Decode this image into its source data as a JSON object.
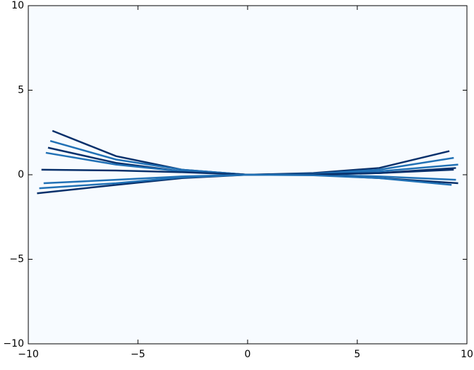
{
  "chart_data": {
    "type": "line",
    "background": "#f7fbff",
    "xlim": [
      -10,
      10
    ],
    "ylim": [
      -10,
      10
    ],
    "xticks": [
      {
        "value": -10,
        "label": "−10"
      },
      {
        "value": -5,
        "label": "−5"
      },
      0,
      5,
      10
    ],
    "yticks": [
      {
        "value": -10,
        "label": "−10"
      },
      {
        "value": -5,
        "label": "−5"
      },
      0,
      5,
      10
    ],
    "series": [
      {
        "color": "#08306b",
        "x": [
          -8.9,
          -6,
          -3,
          0,
          3,
          6,
          9.2
        ],
        "values": [
          2.6,
          1.1,
          0.3,
          0,
          0.1,
          0.4,
          1.4
        ]
      },
      {
        "color": "#2171b5",
        "x": [
          -9,
          -6,
          -3,
          0,
          3,
          6,
          9.4
        ],
        "values": [
          2.0,
          0.9,
          0.3,
          0,
          0.05,
          0.3,
          1.0
        ]
      },
      {
        "color": "#08306b",
        "x": [
          -9.1,
          -6,
          -3,
          0,
          3,
          6,
          9.5
        ],
        "values": [
          1.6,
          0.7,
          0.2,
          0,
          0,
          0.1,
          0.4
        ]
      },
      {
        "color": "#2171b5",
        "x": [
          -9.2,
          -6,
          -3,
          0,
          3,
          6,
          9.5
        ],
        "values": [
          1.3,
          0.6,
          0.2,
          0,
          0,
          -0.1,
          -0.3
        ]
      },
      {
        "color": "#08306b",
        "x": [
          -9.4,
          -6,
          -3,
          0,
          3,
          6,
          9.6
        ],
        "values": [
          0.3,
          0.25,
          0.15,
          0,
          0,
          -0.2,
          -0.5
        ]
      },
      {
        "color": "#2171b5",
        "x": [
          -9.3,
          -6,
          -3,
          0,
          3,
          6,
          9.6
        ],
        "values": [
          -0.5,
          -0.3,
          -0.1,
          0,
          0.05,
          0.2,
          0.6
        ]
      },
      {
        "color": "#08306b",
        "x": [
          -9.6,
          -6,
          -3,
          0,
          3,
          6,
          9.4
        ],
        "values": [
          -1.1,
          -0.6,
          -0.2,
          0,
          0.02,
          0.1,
          0.3
        ]
      },
      {
        "color": "#2171b5",
        "x": [
          -9.5,
          -6,
          -3,
          0,
          3,
          6,
          9.3
        ],
        "values": [
          -0.8,
          -0.5,
          -0.15,
          0,
          -0.03,
          -0.2,
          -0.6
        ]
      }
    ]
  }
}
